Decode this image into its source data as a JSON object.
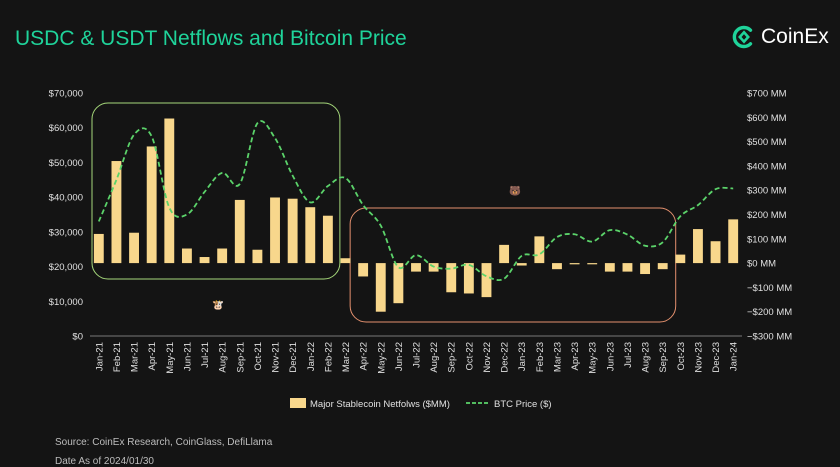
{
  "header": {
    "title": "USDC & USDT Netflows and Bitcoin Price",
    "brand_name": "CoinEx",
    "brand_icon": "coinex-logo-icon"
  },
  "footer": {
    "source": "Source:  CoinEx Research, CoinGlass, DefiLlama",
    "as_of": "Date As of 2024/01/30"
  },
  "annotations": {
    "bull_emoji": "🐮",
    "bear_emoji": "🐻",
    "bull_box_color": "#a6d97b",
    "bear_box_color": "#e3906e"
  },
  "colors": {
    "background": "#141414",
    "title": "#1fd39a",
    "bars": "#f8d78c",
    "btc_line": "#5bd36a",
    "axis_text": "#e0e0e0"
  },
  "chart_data": {
    "type": "bar",
    "categories": [
      "Jan-21",
      "Feb-21",
      "Mar-21",
      "Apr-21",
      "May-21",
      "Jun-21",
      "Jul-21",
      "Aug-21",
      "Sep-21",
      "Oct-21",
      "Nov-21",
      "Dec-21",
      "Jan-22",
      "Feb-22",
      "Mar-22",
      "Apr-22",
      "May-22",
      "Jun-22",
      "Jul-22",
      "Aug-22",
      "Sep-22",
      "Oct-22",
      "Nov-22",
      "Dec-22",
      "Jan-23",
      "Feb-23",
      "Mar-23",
      "Apr-23",
      "May-23",
      "Jun-23",
      "Jul-23",
      "Aug-23",
      "Sep-23",
      "Oct-23",
      "Nov-23",
      "Dec-23",
      "Jan-24"
    ],
    "series": [
      {
        "name": "Major Stablecoin Netfolws ($MM)",
        "type": "bar",
        "axis": "right",
        "values": [
          120,
          420,
          125,
          480,
          595,
          60,
          25,
          60,
          260,
          55,
          270,
          265,
          230,
          195,
          20,
          -55,
          -200,
          -165,
          -35,
          -35,
          -120,
          -125,
          -140,
          75,
          -10,
          110,
          -25,
          -5,
          -5,
          -35,
          -35,
          -45,
          -25,
          35,
          140,
          90,
          180
        ]
      },
      {
        "name": "BTC Price ($)",
        "type": "line",
        "axis": "left",
        "style": "dashed",
        "values": [
          33000,
          45000,
          58000,
          57500,
          37000,
          35000,
          41500,
          47000,
          43800,
          61300,
          57000,
          46200,
          38500,
          43200,
          45500,
          37700,
          31800,
          19800,
          23300,
          20000,
          19400,
          20500,
          17200,
          16500,
          23100,
          23500,
          28500,
          29300,
          27200,
          30500,
          29200,
          26000,
          27000,
          34500,
          37700,
          42300,
          42500
        ]
      }
    ],
    "y_left": {
      "min": 0,
      "max": 70000,
      "ticks": [
        "$0",
        "$10,000",
        "$20,000",
        "$30,000",
        "$40,000",
        "$50,000",
        "$60,000",
        "$70,000"
      ]
    },
    "y_right": {
      "min": -300,
      "max": 700,
      "ticks": [
        "−$300 MM",
        "−$200 MM",
        "−$100 MM",
        "$0 MM",
        "$100 MM",
        "$200 MM",
        "$300 MM",
        "$400 MM",
        "$500 MM",
        "$600 MM",
        "$700 MM"
      ]
    },
    "legend": {
      "position": "bottom",
      "bar_label": "Major Stablecoin Netfolws ($MM)",
      "line_label": "BTC Price ($)"
    },
    "grid": false
  }
}
